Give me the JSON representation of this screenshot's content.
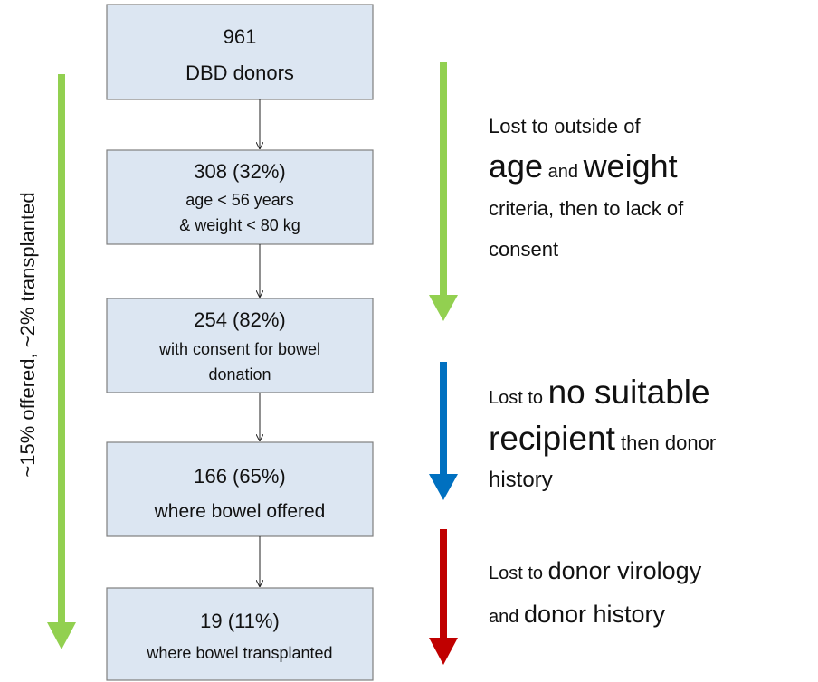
{
  "nodes": [
    {
      "line1": "961",
      "line2": "DBD donors"
    },
    {
      "line1": "308 (32%)",
      "line2": "age < 56 years",
      "line3": "& weight < 80 kg"
    },
    {
      "line1": "254 (82%)",
      "line2": "with consent for bowel",
      "line3": "donation"
    },
    {
      "line1": "166 (65%)",
      "line2": "where bowel offered"
    },
    {
      "line1": "19 (11%)",
      "line2": "where bowel transplanted"
    }
  ],
  "side_label": "~15% offered, ~2% transplanted",
  "annotations": [
    {
      "lines": [
        [
          "Lost to outside of"
        ],
        [
          "age",
          " and ",
          "weight"
        ],
        [
          "criteria, then to lack of"
        ],
        [
          "consent"
        ]
      ]
    },
    {
      "lines": [
        [
          "Lost to ",
          "no suitable"
        ],
        [
          "recipient",
          " then donor"
        ],
        [
          "history"
        ]
      ]
    },
    {
      "lines": [
        [
          "Lost to ",
          "donor virology"
        ],
        [
          "and ",
          "donor history"
        ]
      ]
    }
  ]
}
